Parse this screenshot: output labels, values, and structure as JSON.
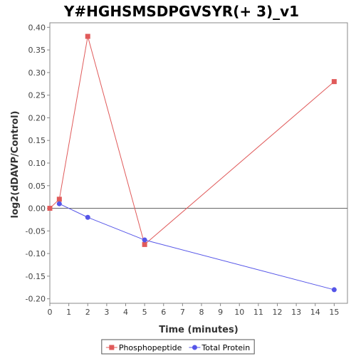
{
  "chart_data": {
    "type": "line",
    "title": "Y#HGHSMSDPGVSYR(+ 3)_v1",
    "xlabel": "Time (minutes)",
    "ylabel": "log2(dDAVP/Control)",
    "xlim": [
      0,
      15.7
    ],
    "ylim": [
      -0.21,
      0.41
    ],
    "xticks": [
      0,
      1,
      2,
      3,
      4,
      5,
      6,
      7,
      8,
      9,
      10,
      11,
      12,
      13,
      14,
      15
    ],
    "yticks": [
      -0.2,
      -0.15,
      -0.1,
      -0.05,
      0.0,
      0.05,
      0.1,
      0.15,
      0.2,
      0.25,
      0.3,
      0.35,
      0.4
    ],
    "ytick_labels": [
      "-0.20",
      "-0.15",
      "-0.10",
      "-0.05",
      "0.00",
      "0.05",
      "0.10",
      "0.15",
      "0.20",
      "0.25",
      "0.30",
      "0.35",
      "0.40"
    ],
    "zero_line": true,
    "grid": false,
    "legend_position": "bottom",
    "series": [
      {
        "name": "Phosphopeptide",
        "color": "#e05a5a",
        "marker": "square",
        "points": [
          {
            "x": 0,
            "y": 0.0
          },
          {
            "x": 0.5,
            "y": 0.02
          },
          {
            "x": 2,
            "y": 0.38
          },
          {
            "x": 5,
            "y": -0.08
          },
          {
            "x": 15,
            "y": 0.28
          }
        ]
      },
      {
        "name": "Total Protein",
        "color": "#5555e8",
        "marker": "circle",
        "points": [
          {
            "x": 0.5,
            "y": 0.01
          },
          {
            "x": 2,
            "y": -0.02
          },
          {
            "x": 5,
            "y": -0.07
          },
          {
            "x": 15,
            "y": -0.18
          }
        ]
      }
    ]
  }
}
